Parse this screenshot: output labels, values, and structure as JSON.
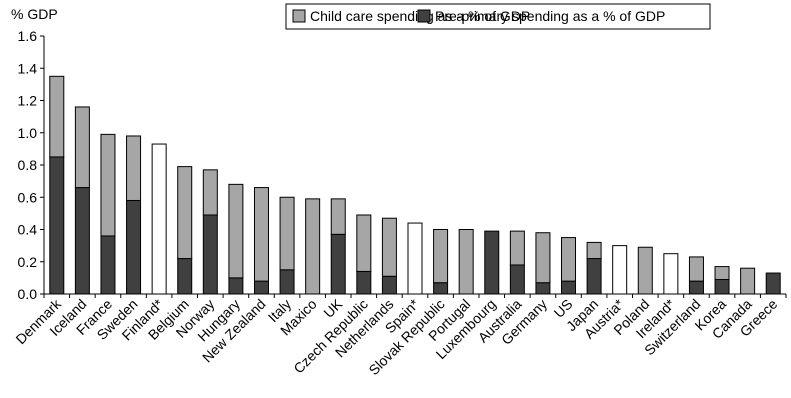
{
  "colors": {
    "child_care": "#a6a6a6",
    "pre_primary": "#404040",
    "total_only": "#ffffff",
    "stroke": "#000000"
  },
  "chart_data": {
    "type": "bar",
    "stacked": true,
    "ylabel": "% GDP",
    "ylim": [
      0,
      1.6
    ],
    "yticks": [
      "0.0",
      "0.2",
      "0.4",
      "0.6",
      "0.8",
      "1.0",
      "1.2",
      "1.4",
      "1.6"
    ],
    "grid": false,
    "legend_position": "top",
    "categories": [
      "Denmark",
      "Iceland",
      "France",
      "Sweden",
      "Finland*",
      "Belgium",
      "Norway",
      "Hungary",
      "New Zealand",
      "Italy",
      "Maxico",
      "UK",
      "Czech Republic",
      "Netherlands",
      "Spain*",
      "Slovak Republic",
      "Portugal",
      "Luxembourg",
      "Australia",
      "Germany",
      "US",
      "Japan",
      "Austria*",
      "Poland",
      "Ireland*",
      "Switzerland",
      "Korea",
      "Canada",
      "Greece"
    ],
    "series": [
      {
        "name": "Child care spending as a % of GDP",
        "values": [
          0.5,
          0.5,
          0.63,
          0.4,
          0,
          0.57,
          0.28,
          0.58,
          0.58,
          0.45,
          0.59,
          0.22,
          0.35,
          0.36,
          0,
          0.33,
          0.4,
          0,
          0.21,
          0.31,
          0.27,
          0.1,
          0,
          0.29,
          0,
          0.15,
          0.08,
          0.16,
          0
        ]
      },
      {
        "name": "Pre-primary spending as a % of GDP",
        "values": [
          0.85,
          0.66,
          0.36,
          0.58,
          0,
          0.22,
          0.49,
          0.1,
          0.08,
          0.15,
          0,
          0.37,
          0.14,
          0.11,
          0,
          0.07,
          0,
          0.39,
          0.18,
          0.07,
          0.08,
          0.22,
          0,
          0,
          0,
          0.08,
          0.09,
          0,
          0.13
        ]
      }
    ],
    "total_only": {
      "note_marker": "*",
      "values": [
        0,
        0,
        0,
        0,
        0.93,
        0,
        0,
        0,
        0,
        0,
        0,
        0,
        0,
        0,
        0.44,
        0,
        0,
        0,
        0,
        0,
        0,
        0,
        0.3,
        0,
        0.25,
        0,
        0,
        0,
        0
      ]
    }
  }
}
